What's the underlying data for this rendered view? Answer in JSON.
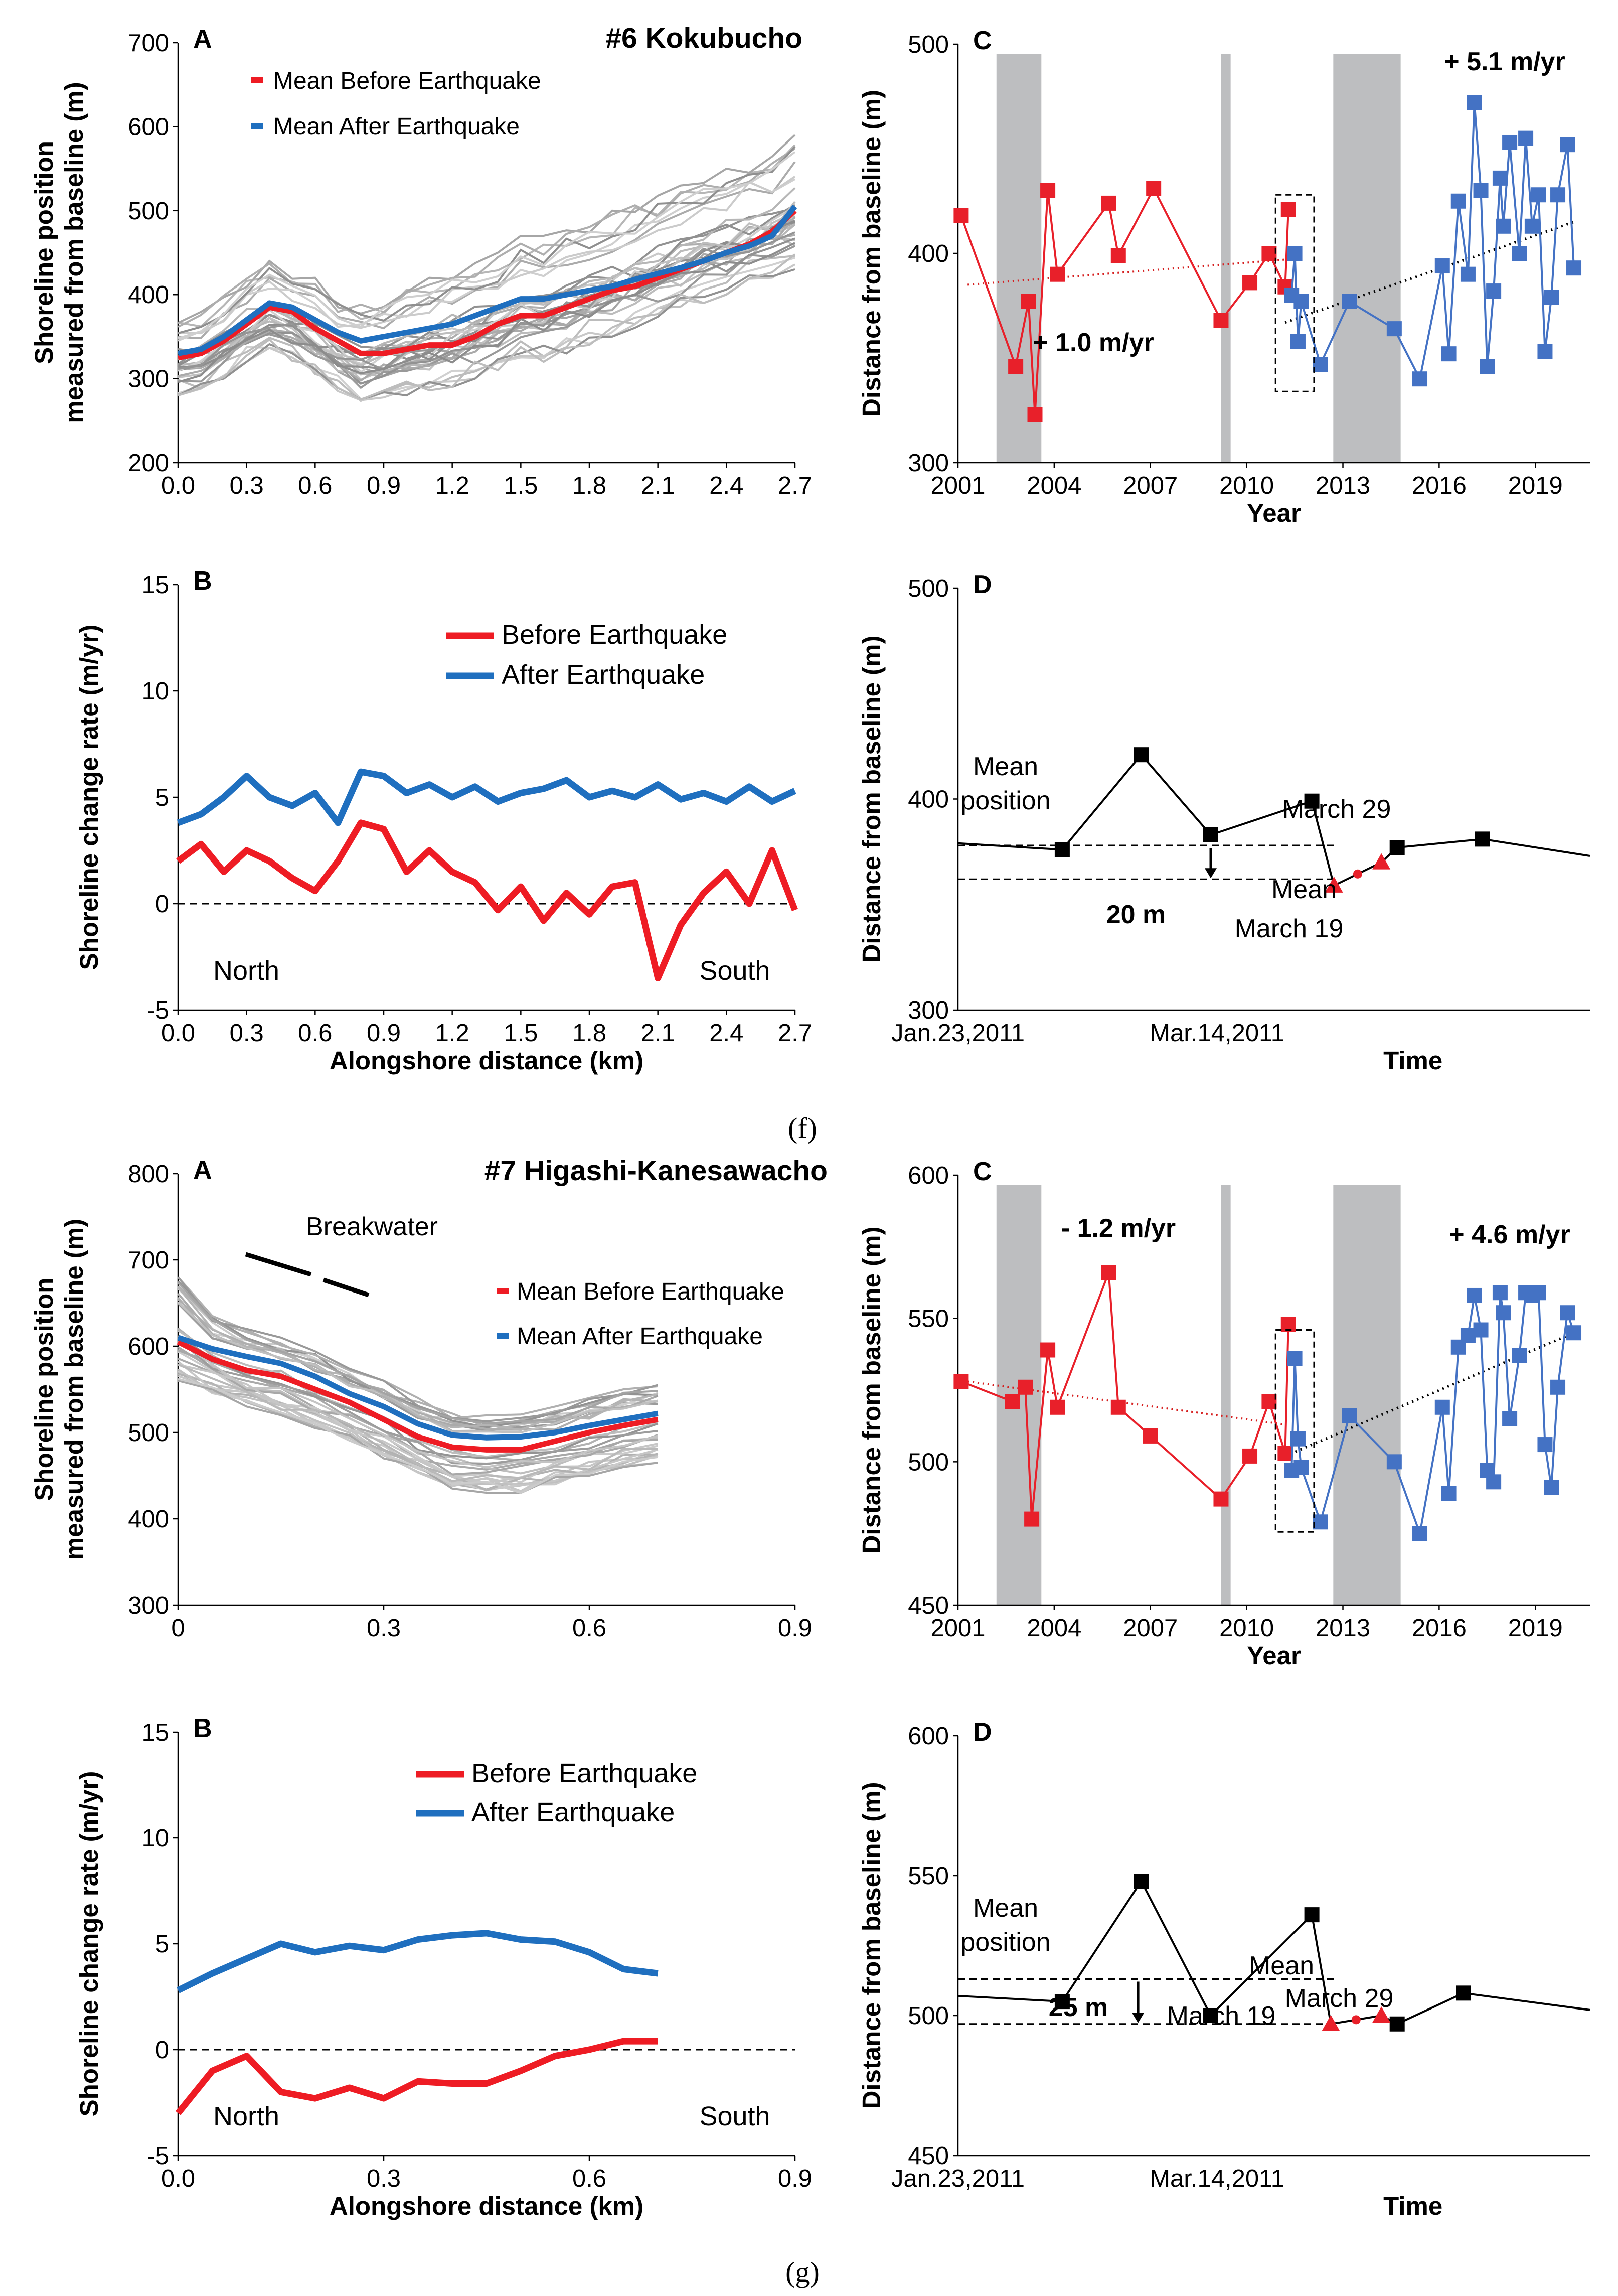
{
  "captions": [
    "(f)",
    "(g)"
  ],
  "chart_data": [
    {
      "id": "f",
      "type": "line",
      "panel": "A",
      "title": "#6 Kokubucho",
      "xlabel": "",
      "ylabel": "Shoreline position measured from baseline (m)",
      "xlim": [
        0,
        2.7
      ],
      "ylim": [
        200,
        700
      ],
      "xticks": [
        "0.0",
        "0.3",
        "0.6",
        "0.9",
        "1.2",
        "1.5",
        "1.8",
        "2.1",
        "2.4",
        "2.7"
      ],
      "yticks": [
        "200",
        "300",
        "400",
        "500",
        "600",
        "700"
      ],
      "legend": [
        "Mean Before Earthquake",
        "Mean After Earthquake"
      ],
      "x": [
        0,
        0.1,
        0.2,
        0.3,
        0.4,
        0.5,
        0.6,
        0.7,
        0.8,
        0.9,
        1.0,
        1.1,
        1.2,
        1.3,
        1.4,
        1.5,
        1.6,
        1.7,
        1.8,
        1.9,
        2.0,
        2.1,
        2.2,
        2.3,
        2.4,
        2.5,
        2.6,
        2.7
      ],
      "series": [
        {
          "name": "Mean Before Earthquake",
          "color": "#ee1c24",
          "values": [
            325,
            330,
            345,
            365,
            385,
            380,
            360,
            345,
            330,
            330,
            335,
            340,
            340,
            350,
            365,
            375,
            375,
            385,
            395,
            405,
            410,
            420,
            430,
            440,
            450,
            460,
            475,
            500
          ]
        },
        {
          "name": "Mean After Earthquake",
          "color": "#1f6fbf",
          "values": [
            330,
            335,
            350,
            370,
            390,
            385,
            370,
            355,
            345,
            350,
            355,
            360,
            365,
            375,
            385,
            395,
            395,
            400,
            405,
            410,
            418,
            425,
            432,
            440,
            450,
            458,
            470,
            505
          ]
        }
      ],
      "grey_band": {
        "lower": [
          280,
          285,
          300,
          320,
          330,
          320,
          300,
          285,
          270,
          275,
          280,
          285,
          290,
          300,
          310,
          320,
          320,
          330,
          340,
          350,
          360,
          370,
          380,
          390,
          400,
          410,
          420,
          430
        ],
        "upper": [
          370,
          380,
          400,
          420,
          440,
          430,
          420,
          400,
          390,
          400,
          410,
          420,
          430,
          440,
          450,
          470,
          470,
          480,
          490,
          500,
          510,
          520,
          530,
          540,
          550,
          560,
          570,
          590
        ]
      }
    },
    {
      "id": "f",
      "type": "line",
      "panel": "B",
      "xlabel": "Alongshore distance (km)",
      "ylabel": "Shoreline change rate (m/yr)",
      "xlim": [
        0,
        2.7
      ],
      "ylim": [
        -5,
        15
      ],
      "xticks": [
        "0.0",
        "0.3",
        "0.6",
        "0.9",
        "1.2",
        "1.5",
        "1.8",
        "2.1",
        "2.4",
        "2.7"
      ],
      "yticks": [
        "-5",
        "0",
        "5",
        "10",
        "15"
      ],
      "legend": [
        "Before Earthquake",
        "After Earthquake"
      ],
      "notes": [
        "North",
        "South"
      ],
      "x": [
        0,
        0.1,
        0.2,
        0.3,
        0.4,
        0.5,
        0.6,
        0.7,
        0.8,
        0.9,
        1.0,
        1.1,
        1.2,
        1.3,
        1.4,
        1.5,
        1.6,
        1.7,
        1.8,
        1.9,
        2.0,
        2.1,
        2.2,
        2.3,
        2.4,
        2.5,
        2.6,
        2.7
      ],
      "series": [
        {
          "name": "Before Earthquake",
          "color": "#ee1c24",
          "values": [
            2,
            2.8,
            1.5,
            2.5,
            2,
            1.2,
            0.6,
            2,
            3.8,
            3.5,
            1.5,
            2.5,
            1.5,
            1,
            -0.3,
            0.8,
            -0.8,
            0.5,
            -0.5,
            0.8,
            1,
            -3.5,
            -1,
            0.5,
            1.5,
            0,
            2.5,
            -0.3
          ]
        },
        {
          "name": "After Earthquake",
          "color": "#1f6fbf",
          "values": [
            3.8,
            4.2,
            5,
            6,
            5,
            4.6,
            5.2,
            3.8,
            6.2,
            6,
            5.2,
            5.6,
            5,
            5.5,
            4.8,
            5.2,
            5.4,
            5.8,
            5,
            5.3,
            5,
            5.6,
            4.9,
            5.2,
            4.8,
            5.5,
            4.8,
            5.3
          ]
        }
      ]
    },
    {
      "id": "f",
      "type": "scatter",
      "panel": "C",
      "xlabel": "Year",
      "ylabel": "Distance from baseline (m)",
      "xlim": [
        2001,
        2020.7
      ],
      "ylim": [
        300,
        500
      ],
      "xticks": [
        "2001",
        "2004",
        "2007",
        "2010",
        "2013",
        "2016",
        "2019"
      ],
      "yticks": [
        "300",
        "400",
        "500"
      ],
      "shaded_periods": [
        [
          2002.2,
          2003.6
        ],
        [
          2009.2,
          2009.5
        ],
        [
          2012.7,
          2014.8
        ]
      ],
      "trend_before": {
        "label": "+ 1.0 m/yr",
        "from": [
          2001.3,
          385
        ],
        "to": [
          2011.2,
          397
        ]
      },
      "trend_after": {
        "label": "+ 5.1 m/yr",
        "from": [
          2011.2,
          367
        ],
        "to": [
          2020.2,
          415
        ]
      },
      "series": [
        {
          "name": "Before Earthquake",
          "color": "#e8202a",
          "x": [
            2001.1,
            2002.8,
            2003.2,
            2003.4,
            2003.8,
            2004.1,
            2005.7,
            2006.0,
            2007.1,
            2009.2,
            2010.1,
            2010.7,
            2011.2,
            2011.3
          ],
          "values": [
            418,
            346,
            377,
            323,
            430,
            390,
            424,
            399,
            431,
            368,
            386,
            400,
            384,
            421
          ]
        },
        {
          "name": "After Earthquake",
          "color": "#4472c4",
          "x": [
            2011.4,
            2011.5,
            2011.6,
            2011.7,
            2012.3,
            2013.2,
            2014.6,
            2015.4,
            2016.1,
            2016.3,
            2016.6,
            2016.9,
            2017.1,
            2017.3,
            2017.5,
            2017.7,
            2017.9,
            2018.0,
            2018.2,
            2018.5,
            2018.7,
            2018.9,
            2019.1,
            2019.3,
            2019.5,
            2019.7,
            2020.0,
            2020.2
          ],
          "values": [
            380,
            400,
            358,
            377,
            347,
            377,
            364,
            340,
            394,
            352,
            425,
            390,
            472,
            430,
            346,
            382,
            436,
            413,
            453,
            400,
            455,
            413,
            428,
            353,
            379,
            428,
            452,
            393
          ]
        }
      ]
    },
    {
      "id": "f",
      "type": "scatter",
      "panel": "D",
      "xlabel": "Time",
      "ylabel": "Distance from baseline (m)",
      "ylim": [
        300,
        500
      ],
      "xticks": [
        "Jan.23,2011",
        "Mar.14,2011"
      ],
      "yticks": [
        "300",
        "400",
        "500"
      ],
      "annotations": [
        "Mean position",
        "March 29",
        "Mean",
        "March 19",
        "20 m"
      ],
      "points_before": [
        376,
        421,
        383,
        399
      ],
      "points_after": [
        377,
        381
      ],
      "triangles": [
        359,
        370
      ],
      "mean_before": 378,
      "mean_after": 362
    },
    {
      "id": "g",
      "type": "line",
      "panel": "A",
      "title": "#7 Higashi-Kanesawacho",
      "xlabel": "",
      "ylabel": "Shoreline position measured from baseline (m)",
      "xlim": [
        0,
        0.9
      ],
      "ylim": [
        300,
        800
      ],
      "xticks": [
        "0",
        "0.3",
        "0.6",
        "0.9"
      ],
      "yticks": [
        "300",
        "400",
        "500",
        "600",
        "700",
        "800"
      ],
      "legend": [
        "Mean Before Earthquake",
        "Mean After Earthquake"
      ],
      "notes": [
        "Breakwater"
      ],
      "x": [
        0,
        0.05,
        0.1,
        0.15,
        0.2,
        0.25,
        0.3,
        0.35,
        0.4,
        0.45,
        0.5,
        0.55,
        0.6,
        0.65,
        0.7
      ],
      "series": [
        {
          "name": "Mean Before Earthquake",
          "color": "#ee1c24",
          "values": [
            605,
            585,
            572,
            565,
            550,
            535,
            515,
            495,
            483,
            480,
            480,
            490,
            500,
            508,
            515
          ]
        },
        {
          "name": "Mean After Earthquake",
          "color": "#1f6fbf",
          "values": [
            610,
            597,
            588,
            580,
            565,
            545,
            530,
            510,
            497,
            494,
            495,
            500,
            508,
            515,
            522
          ]
        }
      ],
      "grey_band": {
        "lower": [
          560,
          545,
          530,
          520,
          505,
          490,
          470,
          450,
          435,
          430,
          430,
          440,
          450,
          460,
          465
        ],
        "upper": [
          680,
          635,
          620,
          610,
          595,
          575,
          560,
          540,
          525,
          520,
          525,
          530,
          540,
          550,
          555
        ]
      }
    },
    {
      "id": "g",
      "type": "line",
      "panel": "B",
      "xlabel": "Alongshore distance (km)",
      "ylabel": "Shoreline change rate (m/yr)",
      "xlim": [
        0,
        0.9
      ],
      "ylim": [
        -5,
        15
      ],
      "xticks": [
        "0.0",
        "0.3",
        "0.6",
        "0.9"
      ],
      "yticks": [
        "-5",
        "0",
        "5",
        "10",
        "15"
      ],
      "legend": [
        "Before Earthquake",
        "After Earthquake"
      ],
      "notes": [
        "North",
        "South"
      ],
      "x": [
        0,
        0.05,
        0.1,
        0.15,
        0.2,
        0.25,
        0.3,
        0.35,
        0.4,
        0.45,
        0.5,
        0.55,
        0.6,
        0.65,
        0.7
      ],
      "series": [
        {
          "name": "Before Earthquake",
          "color": "#ee1c24",
          "values": [
            -3,
            -1,
            -0.3,
            -2,
            -2.3,
            -1.8,
            -2.3,
            -1.5,
            -1.6,
            -1.6,
            -1,
            -0.3,
            0,
            0.4,
            0.4
          ]
        },
        {
          "name": "After Earthquake",
          "color": "#1f6fbf",
          "values": [
            2.8,
            3.6,
            4.3,
            5,
            4.6,
            4.9,
            4.7,
            5.2,
            5.4,
            5.5,
            5.2,
            5.1,
            4.6,
            3.8,
            3.6
          ]
        }
      ]
    },
    {
      "id": "g",
      "type": "scatter",
      "panel": "C",
      "xlabel": "Year",
      "ylabel": "Distance from baseline (m)",
      "xlim": [
        2001,
        2020.7
      ],
      "ylim": [
        450,
        600
      ],
      "xticks": [
        "2001",
        "2004",
        "2007",
        "2010",
        "2013",
        "2016",
        "2019"
      ],
      "yticks": [
        "450",
        "500",
        "550",
        "600"
      ],
      "shaded_periods": [
        [
          2002.2,
          2003.6
        ],
        [
          2009.2,
          2009.5
        ],
        [
          2012.7,
          2014.8
        ]
      ],
      "trend_before": {
        "label": "- 1.2 m/yr",
        "from": [
          2001.3,
          528
        ],
        "to": [
          2011.2,
          513
        ]
      },
      "trend_after": {
        "label": "+ 4.6 m/yr",
        "from": [
          2011.2,
          502
        ],
        "to": [
          2020.2,
          545
        ]
      },
      "series": [
        {
          "name": "Before Earthquake",
          "color": "#e8202a",
          "x": [
            2001.1,
            2002.7,
            2003.1,
            2003.3,
            2003.8,
            2004.1,
            2005.7,
            2006.0,
            2007.0,
            2009.2,
            2010.1,
            2010.7,
            2011.2,
            2011.3
          ],
          "values": [
            528,
            521,
            526,
            480,
            539,
            519,
            566,
            519,
            509,
            487,
            502,
            521,
            503,
            548
          ]
        },
        {
          "name": "After Earthquake",
          "color": "#4472c4",
          "x": [
            2011.4,
            2011.5,
            2011.6,
            2011.7,
            2012.3,
            2013.2,
            2014.6,
            2015.4,
            2016.1,
            2016.3,
            2016.6,
            2016.9,
            2017.1,
            2017.3,
            2017.5,
            2017.7,
            2017.9,
            2018.0,
            2018.2,
            2018.5,
            2018.7,
            2018.9,
            2019.1,
            2019.3,
            2019.5,
            2019.7,
            2020.0,
            2020.2
          ],
          "values": [
            497,
            536,
            508,
            498,
            479,
            516,
            500,
            475,
            519,
            489,
            540,
            544,
            558,
            546,
            497,
            493,
            559,
            552,
            515,
            537,
            559,
            558,
            559,
            506,
            491,
            526,
            552,
            545
          ]
        }
      ]
    },
    {
      "id": "g",
      "type": "scatter",
      "panel": "D",
      "xlabel": "Time",
      "ylabel": "Distance from baseline (m)",
      "ylim": [
        450,
        600
      ],
      "xticks": [
        "Jan.23,2011",
        "Mar.14,2011"
      ],
      "yticks": [
        "450",
        "500",
        "550",
        "600"
      ],
      "annotations": [
        "Mean position",
        "Mean",
        "March 29",
        "March 19",
        "25 m"
      ],
      "points_before": [
        505,
        548,
        500,
        536
      ],
      "points_after": [
        497,
        508
      ],
      "triangles": [
        497,
        500
      ],
      "mean_before": 513,
      "mean_after": 497
    }
  ]
}
